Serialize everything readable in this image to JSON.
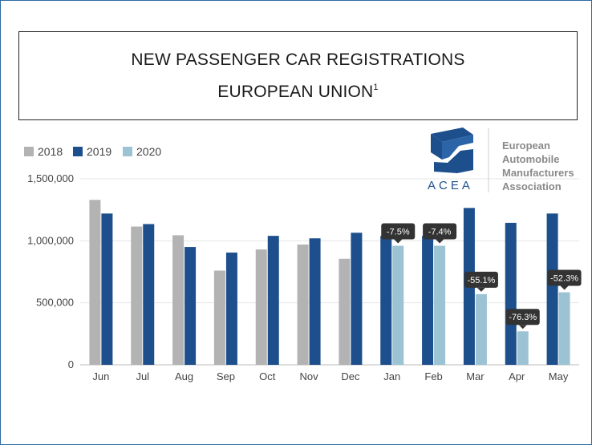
{
  "title": {
    "line1": "NEW PASSENGER CAR REGISTRATIONS",
    "line2": "EUROPEAN UNION",
    "footnote": "1"
  },
  "logo": {
    "name": "ACEA",
    "org_lines": [
      "European",
      "Automobile",
      "Manufacturers",
      "Association"
    ]
  },
  "colors": {
    "2018": "#b3b3b3",
    "2019": "#1d4f8c",
    "2020": "#9cc3d4",
    "callout": "#333333",
    "grid": "#e6e6e6"
  },
  "chart_data": {
    "type": "bar",
    "title": "NEW PASSENGER CAR REGISTRATIONS EUROPEAN UNION",
    "xlabel": "",
    "ylabel": "",
    "ylim": [
      0,
      1500000
    ],
    "yticks": [
      0,
      500000,
      1000000,
      1500000
    ],
    "ytick_labels": [
      "0",
      "500,000",
      "1,000,000",
      "1,500,000"
    ],
    "grid": true,
    "legend_position": "top-left",
    "categories": [
      "Jun",
      "Jul",
      "Aug",
      "Sep",
      "Oct",
      "Nov",
      "Dec",
      "Jan",
      "Feb",
      "Mar",
      "Apr",
      "May"
    ],
    "series": [
      {
        "name": "2018",
        "values": [
          1330000,
          1115000,
          1045000,
          760000,
          930000,
          970000,
          855000,
          null,
          null,
          null,
          null,
          null
        ]
      },
      {
        "name": "2019",
        "values": [
          1220000,
          1135000,
          950000,
          905000,
          1040000,
          1020000,
          1065000,
          1040000,
          1040000,
          1265000,
          1145000,
          1220000
        ]
      },
      {
        "name": "2020",
        "values": [
          null,
          null,
          null,
          null,
          null,
          null,
          null,
          960000,
          960000,
          570000,
          270000,
          585000
        ]
      }
    ],
    "annotations": [
      {
        "category": "Jan",
        "text": "-7.5%"
      },
      {
        "category": "Feb",
        "text": "-7.4%"
      },
      {
        "category": "Mar",
        "text": "-55.1%"
      },
      {
        "category": "Apr",
        "text": "-76.3%"
      },
      {
        "category": "May",
        "text": "-52.3%"
      }
    ]
  }
}
